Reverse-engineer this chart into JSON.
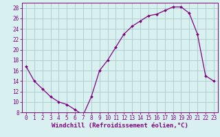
{
  "hours": [
    0,
    1,
    2,
    3,
    4,
    5,
    6,
    7,
    8,
    9,
    10,
    11,
    12,
    13,
    14,
    15,
    16,
    17,
    18,
    19,
    20,
    21,
    22,
    23
  ],
  "windchill": [
    16.8,
    14.0,
    12.5,
    11.0,
    10.0,
    9.5,
    8.5,
    7.5,
    11.0,
    16.0,
    18.0,
    20.5,
    23.0,
    24.5,
    25.5,
    26.5,
    26.8,
    27.5,
    28.2,
    28.2,
    27.0,
    23.0,
    15.0,
    14.0
  ],
  "line_color": "#800080",
  "marker": "D",
  "marker_size": 2.0,
  "bg_color": "#d8f0f0",
  "grid_color": "#aacccc",
  "xlabel": "Windchill (Refroidissement éolien,°C)",
  "ylim": [
    8,
    29
  ],
  "xlim": [
    -0.5,
    23.5
  ],
  "yticks": [
    8,
    10,
    12,
    14,
    16,
    18,
    20,
    22,
    24,
    26,
    28
  ],
  "xticks": [
    0,
    1,
    2,
    3,
    4,
    5,
    6,
    7,
    8,
    9,
    10,
    11,
    12,
    13,
    14,
    15,
    16,
    17,
    18,
    19,
    20,
    21,
    22,
    23
  ],
  "tick_label_fontsize": 5.5,
  "xlabel_fontsize": 6.5,
  "tick_color": "#800080",
  "axis_color": "#800080",
  "line_width": 0.9
}
